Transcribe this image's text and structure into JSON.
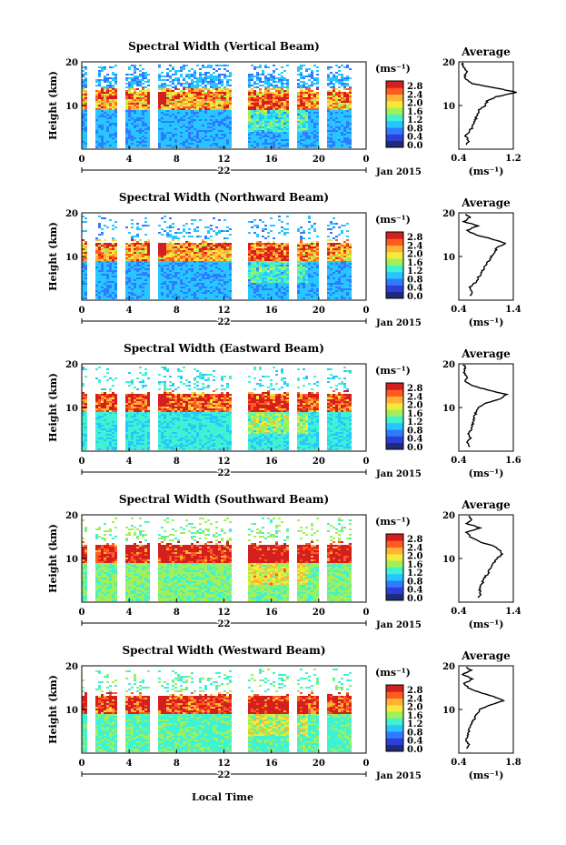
{
  "chart_data": [
    {
      "type": "heatmap",
      "title": "Spectral Width (Vertical Beam)",
      "ylabel": "Height (km)",
      "xticks": [
        "0",
        "4",
        "8",
        "12",
        "16",
        "20",
        "0"
      ],
      "day_label": "22",
      "date_label": "Jan 2015",
      "yticks": [
        "20",
        "10"
      ],
      "xlim": [
        0,
        24
      ],
      "ylim": [
        0,
        20
      ],
      "colorbar": {
        "unit": "(ms⁻¹)",
        "ticks": [
          "2.8",
          "2.4",
          "2.0",
          "1.6",
          "1.2",
          "0.8",
          "0.4",
          "0.0"
        ]
      },
      "profile": {
        "title": "Average",
        "xlabel": "(ms⁻¹)",
        "xticks": [
          "0.4",
          "1.2"
        ],
        "xlim": [
          0.4,
          1.2
        ],
        "yticks": [
          "20",
          "10"
        ],
        "heights": [
          1,
          2,
          3,
          4,
          5,
          6,
          7,
          8,
          9,
          10,
          11,
          12,
          13,
          14,
          15,
          16,
          17,
          18,
          19,
          20
        ],
        "values": [
          0.5,
          0.55,
          0.5,
          0.55,
          0.6,
          0.62,
          0.65,
          0.68,
          0.7,
          0.78,
          0.82,
          0.95,
          1.25,
          0.95,
          0.6,
          0.5,
          0.48,
          0.52,
          0.46,
          0.45
        ]
      }
    },
    {
      "type": "heatmap",
      "title": "Spectral Width (Northward Beam)",
      "ylabel": "Height (km)",
      "xticks": [
        "0",
        "4",
        "8",
        "12",
        "16",
        "20",
        "0"
      ],
      "day_label": "22",
      "date_label": "Jan 2015",
      "yticks": [
        "20",
        "10"
      ],
      "xlim": [
        0,
        24
      ],
      "ylim": [
        0,
        20
      ],
      "colorbar": {
        "unit": "(ms⁻¹)",
        "ticks": [
          "2.8",
          "2.4",
          "2.0",
          "1.6",
          "1.2",
          "0.8",
          "0.4",
          "0.0"
        ]
      },
      "profile": {
        "title": "Average",
        "xlabel": "(ms⁻¹)",
        "xticks": [
          "0.4",
          "1.4"
        ],
        "xlim": [
          0.4,
          1.4
        ],
        "yticks": [
          "20",
          "10"
        ],
        "heights": [
          1,
          2,
          3,
          4,
          5,
          6,
          7,
          8,
          9,
          10,
          11,
          12,
          13,
          14,
          15,
          16,
          17,
          18,
          19,
          20
        ],
        "values": [
          0.6,
          0.65,
          0.6,
          0.7,
          0.75,
          0.8,
          0.85,
          0.9,
          0.95,
          1.0,
          1.05,
          1.1,
          1.25,
          1.0,
          0.7,
          0.55,
          0.75,
          0.5,
          0.6,
          0.5
        ]
      }
    },
    {
      "type": "heatmap",
      "title": "Spectral Width (Eastward Beam)",
      "ylabel": "Height (km)",
      "xticks": [
        "0",
        "4",
        "8",
        "12",
        "16",
        "20",
        "0"
      ],
      "day_label": "22",
      "date_label": "Jan 2015",
      "yticks": [
        "20",
        "10"
      ],
      "xlim": [
        0,
        24
      ],
      "ylim": [
        0,
        20
      ],
      "colorbar": {
        "unit": "(ms⁻¹)",
        "ticks": [
          "2.8",
          "2.4",
          "2.0",
          "1.6",
          "1.2",
          "0.8",
          "0.4",
          "0.0"
        ]
      },
      "profile": {
        "title": "Average",
        "xlabel": "(ms⁻¹)",
        "xticks": [
          "0.4",
          "1.6"
        ],
        "xlim": [
          0.4,
          1.6
        ],
        "yticks": [
          "20",
          "10"
        ],
        "heights": [
          1,
          2,
          3,
          4,
          5,
          6,
          7,
          8,
          9,
          10,
          11,
          12,
          13,
          14,
          15,
          16,
          17,
          18,
          19,
          20
        ],
        "values": [
          0.65,
          0.6,
          0.65,
          0.62,
          0.68,
          0.7,
          0.72,
          0.75,
          0.78,
          0.85,
          1.0,
          1.3,
          1.45,
          1.05,
          0.7,
          0.55,
          0.6,
          0.5,
          0.55,
          0.5
        ]
      }
    },
    {
      "type": "heatmap",
      "title": "Spectral Width (Southward Beam)",
      "ylabel": "Height (km)",
      "xticks": [
        "0",
        "4",
        "8",
        "12",
        "16",
        "20",
        "0"
      ],
      "day_label": "22",
      "date_label": "Jan 2015",
      "yticks": [
        "20",
        "10"
      ],
      "xlim": [
        0,
        24
      ],
      "ylim": [
        0,
        20
      ],
      "colorbar": {
        "unit": "(ms⁻¹)",
        "ticks": [
          "2.8",
          "2.4",
          "2.0",
          "1.6",
          "1.2",
          "0.8",
          "0.4",
          "0.0"
        ]
      },
      "profile": {
        "title": "Average",
        "xlabel": "(ms⁻¹)",
        "xticks": [
          "0.4",
          "1.4"
        ],
        "xlim": [
          0.4,
          1.4
        ],
        "yticks": [
          "20",
          "10"
        ],
        "heights": [
          1,
          2,
          3,
          4,
          5,
          6,
          7,
          8,
          9,
          10,
          11,
          12,
          13,
          14,
          15,
          16,
          17,
          18,
          19,
          20
        ],
        "values": [
          0.75,
          0.8,
          0.78,
          0.82,
          0.85,
          0.9,
          0.95,
          1.0,
          1.05,
          1.1,
          1.2,
          1.15,
          1.0,
          0.75,
          0.6,
          0.55,
          0.8,
          0.55,
          0.65,
          0.55
        ]
      }
    },
    {
      "type": "heatmap",
      "title": "Spectral Width (Westward Beam)",
      "ylabel": "Height (km)",
      "xticks": [
        "0",
        "4",
        "8",
        "12",
        "16",
        "20",
        "0"
      ],
      "day_label": "22",
      "date_label": "Jan 2015",
      "yticks": [
        "20",
        "10"
      ],
      "xlim": [
        0,
        24
      ],
      "ylim": [
        0,
        20
      ],
      "colorbar": {
        "unit": "(ms⁻¹)",
        "ticks": [
          "2.8",
          "2.4",
          "2.0",
          "1.6",
          "1.2",
          "0.8",
          "0.4",
          "0.0"
        ]
      },
      "profile": {
        "title": "Average",
        "xlabel": "(ms⁻¹)",
        "xticks": [
          "0.4",
          "1.8"
        ],
        "xlim": [
          0.4,
          1.8
        ],
        "yticks": [
          "20",
          "10"
        ],
        "heights": [
          1,
          2,
          3,
          4,
          5,
          6,
          7,
          8,
          9,
          10,
          11,
          12,
          13,
          14,
          15,
          16,
          17,
          18,
          19,
          20
        ],
        "values": [
          0.6,
          0.65,
          0.6,
          0.62,
          0.65,
          0.7,
          0.75,
          0.8,
          0.85,
          0.95,
          1.2,
          1.55,
          1.3,
          0.9,
          0.65,
          0.55,
          0.75,
          0.5,
          0.7,
          0.55
        ]
      }
    }
  ],
  "xlabel": "Local Time",
  "colors": {
    "scale": [
      "#1e2a7a",
      "#2d3fd6",
      "#2f7bff",
      "#27c6ff",
      "#3ef2d2",
      "#9ff05a",
      "#f5e93a",
      "#ffb233",
      "#ff5a1f",
      "#d41f1f"
    ],
    "data_gap_columns_hours": [
      0.6,
      3.2,
      6.0,
      12.8,
      13.6,
      17.8,
      20.3,
      22.9
    ]
  }
}
